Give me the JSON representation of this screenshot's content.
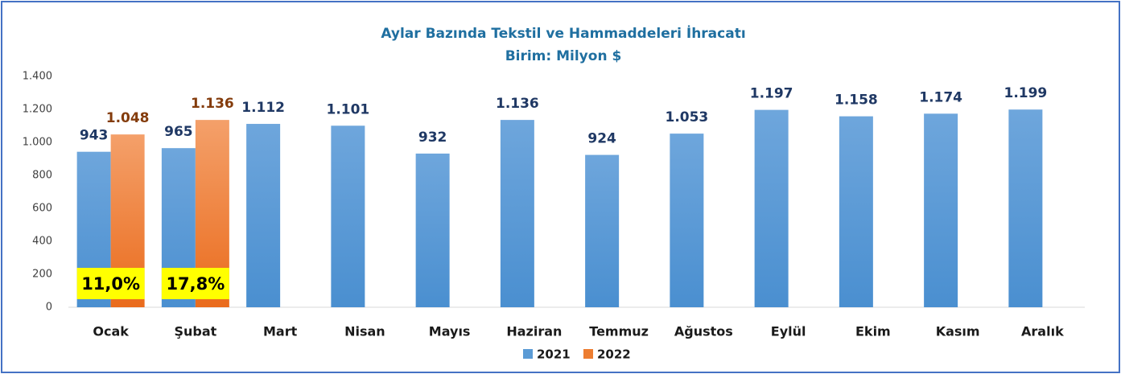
{
  "chart_data": {
    "type": "bar",
    "title": "Aylar Bazında Tekstil ve Hammaddeleri İhracatı",
    "subtitle": "Birim: Milyon $",
    "categories": [
      "Ocak",
      "Şubat",
      "Mart",
      "Nisan",
      "Mayıs",
      "Haziran",
      "Temmuz",
      "Ağustos",
      "Eylül",
      "Ekim",
      "Kasım",
      "Aralık"
    ],
    "series": [
      {
        "name": "2021",
        "color": "#5b9bd5",
        "label_color": "#1f3864",
        "values": [
          943,
          965,
          1112,
          1101,
          932,
          1136,
          924,
          1053,
          1197,
          1158,
          1174,
          1199
        ],
        "value_labels": [
          "943",
          "965",
          "1.112",
          "1.101",
          "932",
          "1.136",
          "924",
          "1.053",
          "1.197",
          "1.158",
          "1.174",
          "1.199"
        ]
      },
      {
        "name": "2022",
        "color": "#ed7d31",
        "label_color": "#843c0c",
        "values": [
          1048,
          1136,
          null,
          null,
          null,
          null,
          null,
          null,
          null,
          null,
          null,
          null
        ],
        "value_labels": [
          "1.048",
          "1.136",
          null,
          null,
          null,
          null,
          null,
          null,
          null,
          null,
          null,
          null
        ]
      }
    ],
    "annotations": [
      "11,0%",
      "17,8%"
    ],
    "ylim": [
      0,
      1400
    ],
    "yticks": [
      0,
      200,
      400,
      600,
      800,
      {
        "value": 1000,
        "label": "1.000"
      },
      {
        "value": 1200,
        "label": "1.200"
      },
      {
        "value": 1400,
        "label": "1.400"
      }
    ],
    "grid": false,
    "legend": "bottom"
  }
}
